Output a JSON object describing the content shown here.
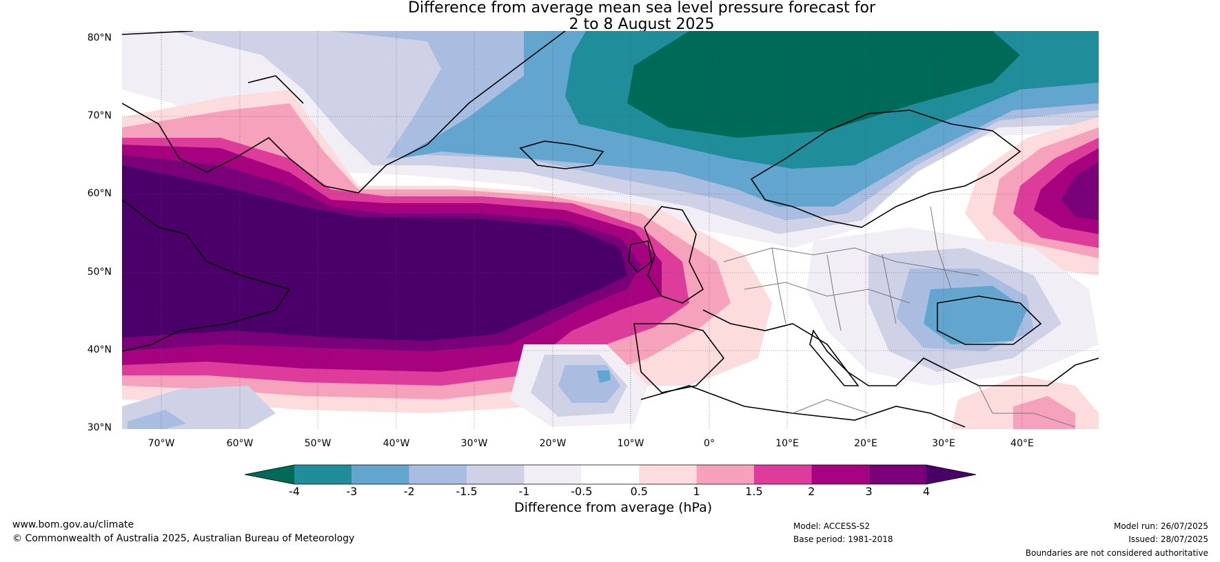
{
  "title_line1": "Difference from average mean sea level pressure forecast for",
  "title_line2": "2 to 8 August 2025",
  "map": {
    "lat_labels": [
      "80°N",
      "70°N",
      "60°N",
      "50°N",
      "40°N",
      "30°N"
    ],
    "lon_labels": [
      "70°W",
      "60°W",
      "50°W",
      "40°W",
      "30°W",
      "20°W",
      "10°W",
      "0°",
      "10°E",
      "20°E",
      "30°E",
      "40°E"
    ]
  },
  "colorbar": {
    "title": "Difference from average (hPa)",
    "ticks": [
      "-4",
      "-3",
      "-2",
      "-1.5",
      "-1",
      "-0.5",
      "0.5",
      "1",
      "1.5",
      "2",
      "3",
      "4"
    ],
    "colors": [
      "#006a58",
      "#1f8e9a",
      "#62a6cf",
      "#a8bde0",
      "#cfd1e6",
      "#f1eef5",
      "#ffffff",
      "#fddcde",
      "#f7a2bc",
      "#dd3c9a",
      "#a60280",
      "#790078",
      "#4a0068"
    ]
  },
  "footer": {
    "website": "www.bom.gov.au/climate",
    "copyright": "© Commonwealth of Australia 2025, Australian Bureau of Meteorology",
    "model": "Model: ACCESS-S2",
    "base_period": "Base period: 1981-2018",
    "model_run": "Model run: 26/07/2025",
    "issued": "Issued: 28/07/2025",
    "disclaimer": "Boundaries are not considered authoritative"
  }
}
